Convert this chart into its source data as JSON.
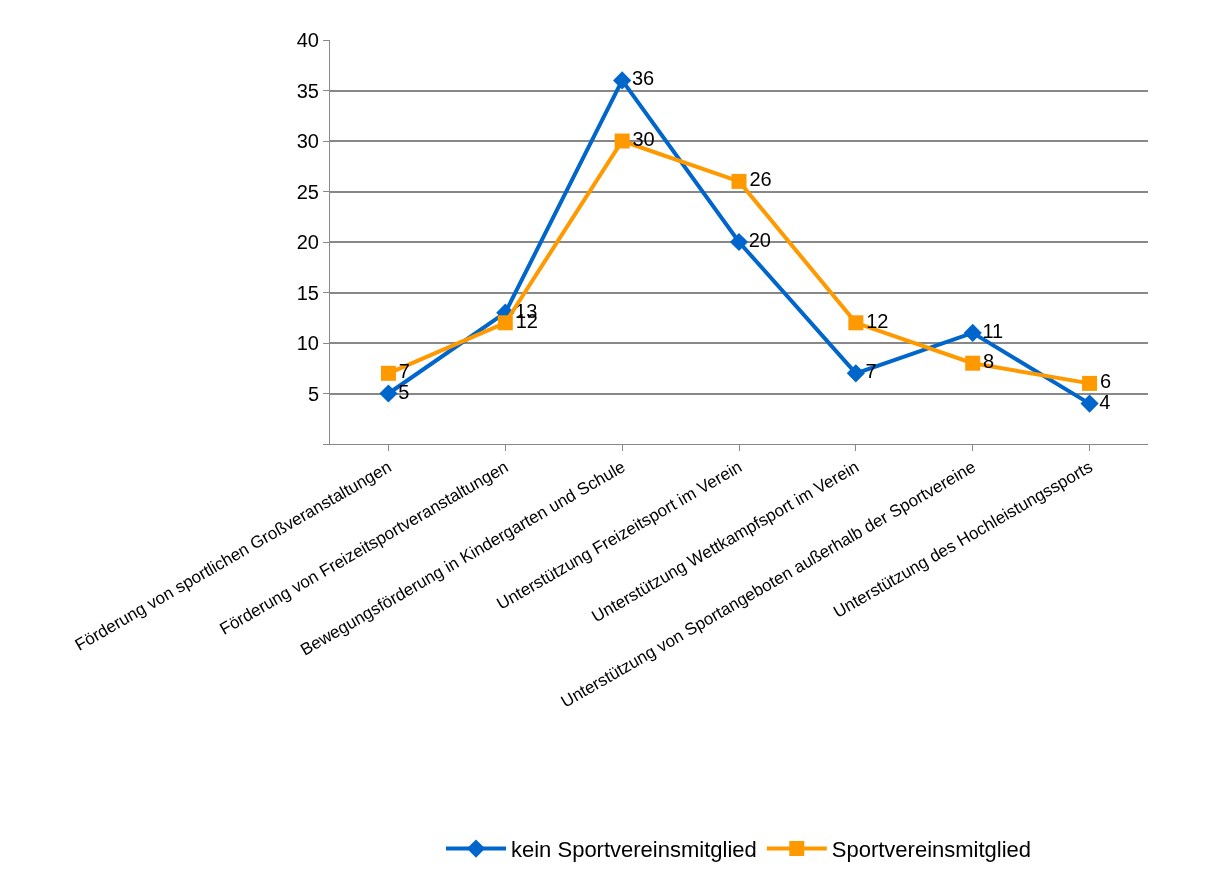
{
  "chart_data": {
    "type": "line",
    "categories": [
      "Förderung von sportlichen Großveranstaltungen",
      "Förderung von Freizeitsportveranstaltungen",
      "Bewegungsförderung in Kindergarten und Schule",
      "Unterstützung Freizeitsport im Verein",
      "Unterstützung Wettkampfsport im Verein",
      "Unterstützung von Sportangeboten außerhalb der Sportvereine",
      "Unterstützung des Hochleistungssports"
    ],
    "series": [
      {
        "name": "kein Sportvereinsmitglied",
        "color": "#0066cc",
        "marker": "diamond",
        "values": [
          5,
          13,
          36,
          20,
          7,
          11,
          4
        ]
      },
      {
        "name": "Sportvereinsmitglied",
        "color": "#ff9900",
        "marker": "square",
        "values": [
          7,
          12,
          30,
          26,
          12,
          8,
          6
        ]
      }
    ],
    "ylim": [
      0,
      40
    ],
    "yticks": [
      {
        "value": 0,
        "label": null
      },
      5,
      10,
      15,
      20,
      25,
      30,
      35,
      40
    ],
    "grid": "y",
    "legend": "bottom",
    "data_labels": true,
    "line_style": "solid"
  }
}
